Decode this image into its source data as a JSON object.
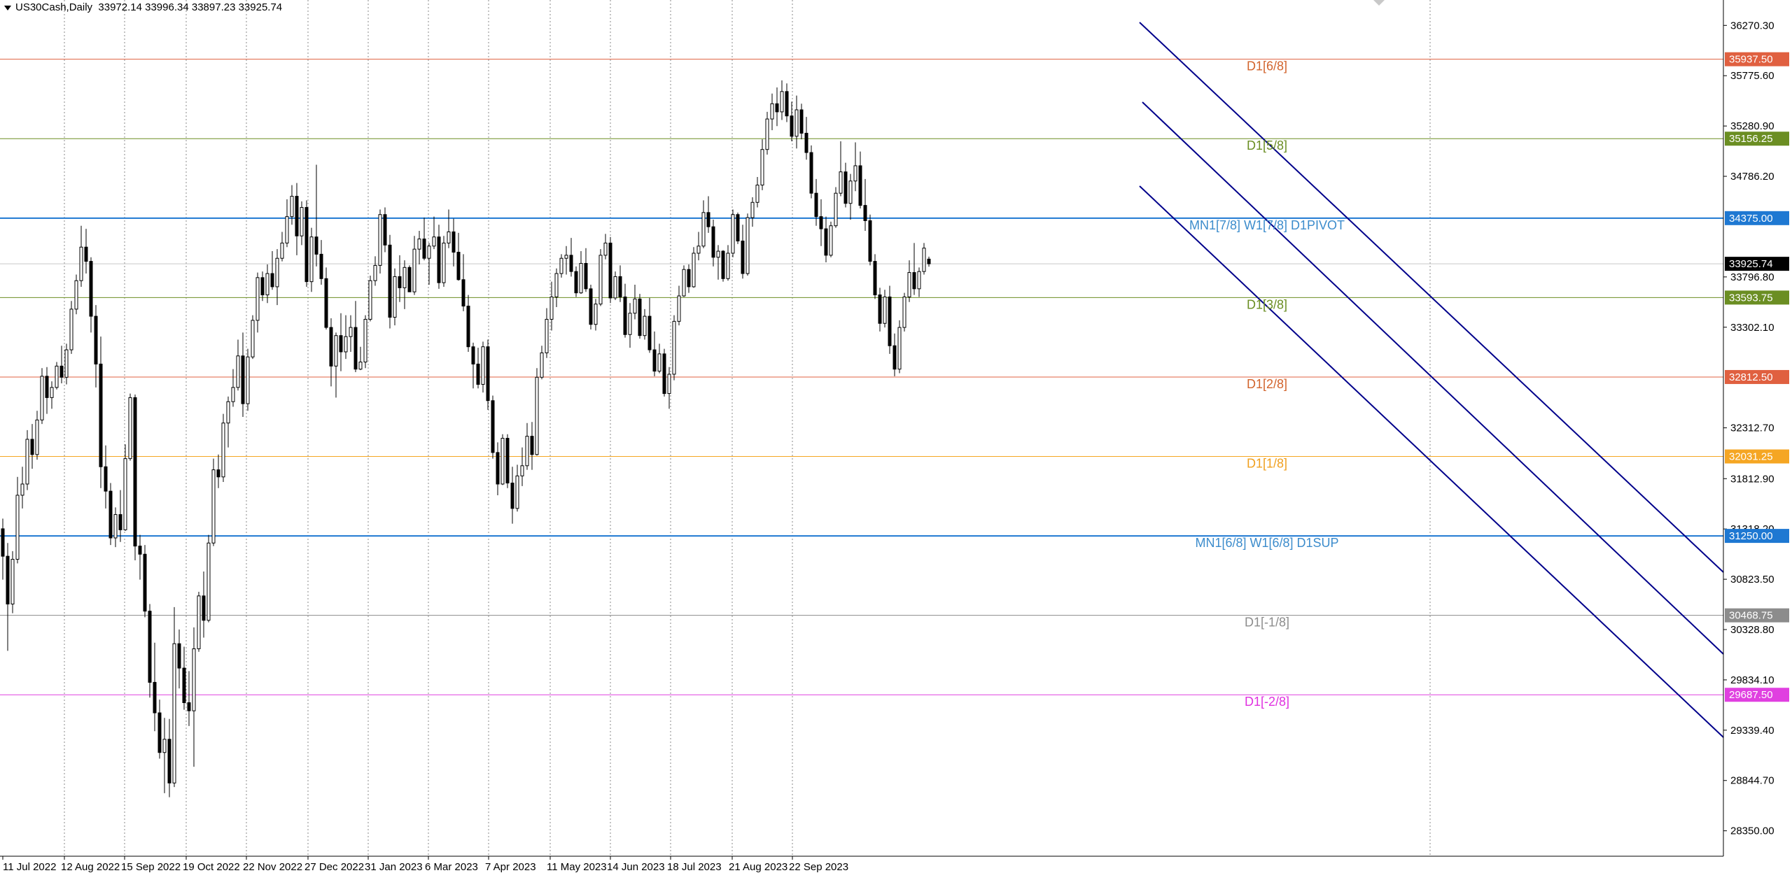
{
  "header": {
    "symbol": "US30Cash,Daily",
    "ohlc": "33972.14 33996.34 33897.23 33925.74"
  },
  "chart_data": {
    "type": "candlestick",
    "ylim": [
      28100,
      36520
    ],
    "grid": true,
    "price_ticks": [
      "36270.30",
      "35775.60",
      "35280.90",
      "34786.20",
      "33796.80",
      "33302.10",
      "32312.70",
      "31812.90",
      "31318.20",
      "30823.50",
      "30328.80",
      "29834.10",
      "29339.40",
      "28844.70",
      "28350.00"
    ],
    "date_labels": [
      "11 Jul 2022",
      "12 Aug 2022",
      "15 Sep 2022",
      "19 Oct 2022",
      "22 Nov 2022",
      "27 Dec 2022",
      "31 Jan 2023",
      "6 Mar 2023",
      "7 Apr 2023",
      "11 May 2023",
      "14 Jun 2023",
      "18 Jul 2023",
      "21 Aug 2023",
      "22 Sep 2023"
    ],
    "current_price": {
      "value": 33925.74,
      "label": "33925.74",
      "color": "#000000"
    },
    "levels": [
      {
        "name": "D1[6/8]",
        "value": 35937.5,
        "label": "35937.50",
        "color": "#e06040",
        "text_color": "#d2642d"
      },
      {
        "name": "D1[5/8]",
        "value": 35156.25,
        "label": "35156.25",
        "color": "#6b8e23",
        "text_color": "#6b8e23"
      },
      {
        "name": "MN1[7/8] W1[7/8] D1PIVOT",
        "value": 34375.0,
        "label": "34375.00",
        "color": "#1e78d2",
        "text_color": "#3c8ccc"
      },
      {
        "name": "D1[3/8]",
        "value": 33593.75,
        "label": "33593.75",
        "color": "#6b8e23",
        "text_color": "#6b8e23"
      },
      {
        "name": "D1[2/8]",
        "value": 32812.5,
        "label": "32812.50",
        "color": "#e06040",
        "text_color": "#d2642d"
      },
      {
        "name": "D1[1/8]",
        "value": 32031.25,
        "label": "32031.25",
        "color": "#f5a623",
        "text_color": "#f0a020"
      },
      {
        "name": "MN1[6/8] W1[6/8] D1SUP",
        "value": 31250.0,
        "label": "31250.00",
        "color": "#1e78d2",
        "text_color": "#3c8ccc"
      },
      {
        "name": "D1[-1/8]",
        "value": 30468.75,
        "label": "30468.75",
        "color": "#8c8c8c",
        "text_color": "#8c8c8c"
      },
      {
        "name": "D1[-2/8]",
        "value": 29687.5,
        "label": "29687.50",
        "color": "#e040e0",
        "text_color": "#e030e0"
      }
    ],
    "channel_color": "#00008b",
    "candles": [
      [
        31320,
        31420,
        30820,
        31050
      ],
      [
        31050,
        31180,
        30120,
        30580
      ],
      [
        30580,
        31100,
        30490,
        31020
      ],
      [
        31020,
        31830,
        30980,
        31650
      ],
      [
        31650,
        31930,
        31520,
        31760
      ],
      [
        31760,
        32290,
        31700,
        32200
      ],
      [
        32200,
        32350,
        31910,
        32050
      ],
      [
        32050,
        32480,
        32000,
        32390
      ],
      [
        32390,
        32900,
        32350,
        32820
      ],
      [
        32820,
        32910,
        32450,
        32610
      ],
      [
        32610,
        32770,
        32500,
        32710
      ],
      [
        32710,
        32960,
        32690,
        32920
      ],
      [
        32920,
        33120,
        32750,
        32810
      ],
      [
        32810,
        33140,
        32740,
        33080
      ],
      [
        33080,
        33560,
        33040,
        33480
      ],
      [
        33480,
        33820,
        33430,
        33760
      ],
      [
        33760,
        34300,
        33700,
        34090
      ],
      [
        34090,
        34270,
        33830,
        33950
      ],
      [
        33950,
        33990,
        33250,
        33410
      ],
      [
        33410,
        33520,
        32710,
        32940
      ],
      [
        32940,
        33210,
        31720,
        31930
      ],
      [
        31930,
        32140,
        31520,
        31690
      ],
      [
        31690,
        31770,
        31160,
        31230
      ],
      [
        31230,
        31530,
        31140,
        31460
      ],
      [
        31460,
        31700,
        31190,
        31310
      ],
      [
        31310,
        32150,
        31300,
        32010
      ],
      [
        32010,
        32650,
        31990,
        32610
      ],
      [
        32610,
        32640,
        31010,
        31150
      ],
      [
        31150,
        31260,
        30820,
        31070
      ],
      [
        31070,
        31160,
        30450,
        30510
      ],
      [
        30510,
        30580,
        29660,
        29810
      ],
      [
        29810,
        30200,
        29330,
        29510
      ],
      [
        29510,
        29640,
        29060,
        29120
      ],
      [
        29120,
        29460,
        28720,
        29250
      ],
      [
        29250,
        29450,
        28680,
        28820
      ],
      [
        28820,
        30550,
        28780,
        30190
      ],
      [
        30190,
        30330,
        29750,
        29950
      ],
      [
        29950,
        30160,
        29540,
        29610
      ],
      [
        29610,
        29920,
        29380,
        29530
      ],
      [
        29530,
        30350,
        28980,
        30140
      ],
      [
        30140,
        30700,
        30110,
        30660
      ],
      [
        30660,
        30900,
        30250,
        30420
      ],
      [
        30420,
        31260,
        30400,
        31180
      ],
      [
        31180,
        32010,
        31150,
        31900
      ],
      [
        31900,
        32050,
        31720,
        31830
      ],
      [
        31830,
        32450,
        31780,
        32360
      ],
      [
        32360,
        32620,
        32120,
        32570
      ],
      [
        32570,
        32890,
        32520,
        32710
      ],
      [
        32710,
        33180,
        32680,
        33020
      ],
      [
        33020,
        33250,
        32420,
        32550
      ],
      [
        32550,
        33090,
        32480,
        33010
      ],
      [
        33010,
        33420,
        32990,
        33370
      ],
      [
        33370,
        33840,
        33250,
        33790
      ],
      [
        33790,
        33850,
        33560,
        33620
      ],
      [
        33620,
        33920,
        33540,
        33830
      ],
      [
        33830,
        34050,
        33670,
        33700
      ],
      [
        33700,
        34070,
        33520,
        33980
      ],
      [
        33980,
        34240,
        33950,
        34130
      ],
      [
        34130,
        34560,
        34090,
        34390
      ],
      [
        34390,
        34700,
        34310,
        34590
      ],
      [
        34590,
        34720,
        34010,
        34200
      ],
      [
        34200,
        34540,
        34110,
        34480
      ],
      [
        34480,
        34550,
        33700,
        33750
      ],
      [
        33750,
        34280,
        33650,
        34190
      ],
      [
        34190,
        34900,
        33900,
        34020
      ],
      [
        34020,
        34160,
        33720,
        33780
      ],
      [
        33780,
        33890,
        33280,
        33300
      ],
      [
        33300,
        33390,
        32720,
        32920
      ],
      [
        32920,
        33250,
        32610,
        33220
      ],
      [
        33220,
        33440,
        32870,
        33060
      ],
      [
        33060,
        33420,
        32990,
        33210
      ],
      [
        33210,
        33420,
        33060,
        33300
      ],
      [
        33300,
        33560,
        32860,
        32890
      ],
      [
        32890,
        33110,
        32880,
        32960
      ],
      [
        32960,
        33420,
        32900,
        33380
      ],
      [
        33380,
        33810,
        33360,
        33760
      ],
      [
        33760,
        34000,
        33710,
        33910
      ],
      [
        33910,
        34460,
        33830,
        34410
      ],
      [
        34410,
        34480,
        34040,
        34110
      ],
      [
        34110,
        34210,
        33290,
        33400
      ],
      [
        33400,
        33880,
        33320,
        33800
      ],
      [
        33800,
        34010,
        33550,
        33690
      ],
      [
        33690,
        33960,
        33480,
        33890
      ],
      [
        33890,
        33910,
        33650,
        33650
      ],
      [
        33650,
        34200,
        33620,
        34070
      ],
      [
        34070,
        34250,
        33920,
        34170
      ],
      [
        34170,
        34380,
        33960,
        33980
      ],
      [
        33980,
        34130,
        33720,
        34100
      ],
      [
        34100,
        34390,
        34070,
        34190
      ],
      [
        34190,
        34310,
        33680,
        33740
      ],
      [
        33740,
        34200,
        33700,
        34130
      ],
      [
        34130,
        34460,
        34080,
        34240
      ],
      [
        34240,
        34370,
        33900,
        34040
      ],
      [
        34040,
        34230,
        33760,
        33770
      ],
      [
        33770,
        34020,
        33460,
        33510
      ],
      [
        33510,
        33620,
        33060,
        33110
      ],
      [
        33110,
        33150,
        32700,
        32940
      ],
      [
        32940,
        33100,
        32700,
        32740
      ],
      [
        32740,
        33160,
        32660,
        33110
      ],
      [
        33110,
        33180,
        32490,
        32580
      ],
      [
        32580,
        32630,
        32010,
        32070
      ],
      [
        32070,
        32170,
        31650,
        31760
      ],
      [
        31760,
        32250,
        31750,
        32210
      ],
      [
        32210,
        32250,
        31720,
        31770
      ],
      [
        31770,
        31930,
        31370,
        31520
      ],
      [
        31520,
        31950,
        31490,
        31840
      ],
      [
        31840,
        32120,
        31740,
        31940
      ],
      [
        31940,
        32360,
        31900,
        32230
      ],
      [
        32230,
        32370,
        31900,
        32050
      ],
      [
        32050,
        32900,
        32040,
        32810
      ],
      [
        32810,
        33120,
        32790,
        33050
      ],
      [
        33050,
        33490,
        33000,
        33380
      ],
      [
        33380,
        33750,
        33270,
        33600
      ],
      [
        33600,
        33880,
        33500,
        33830
      ],
      [
        33830,
        34020,
        33790,
        33980
      ],
      [
        33980,
        34100,
        33820,
        34010
      ],
      [
        34010,
        34180,
        33800,
        33850
      ],
      [
        33850,
        33900,
        33600,
        33640
      ],
      [
        33640,
        34050,
        33630,
        33930
      ],
      [
        33930,
        34080,
        33650,
        33680
      ],
      [
        33680,
        33720,
        33280,
        33330
      ],
      [
        33330,
        33580,
        33270,
        33530
      ],
      [
        33530,
        34070,
        33510,
        34010
      ],
      [
        34010,
        34220,
        33970,
        34130
      ],
      [
        34130,
        34190,
        33540,
        33590
      ],
      [
        33590,
        33850,
        33570,
        33800
      ],
      [
        33800,
        33910,
        33550,
        33600
      ],
      [
        33600,
        33730,
        33200,
        33230
      ],
      [
        33230,
        33540,
        33100,
        33440
      ],
      [
        33440,
        33720,
        33380,
        33580
      ],
      [
        33580,
        33630,
        33190,
        33220
      ],
      [
        33220,
        33480,
        33180,
        33410
      ],
      [
        33410,
        33590,
        33050,
        33080
      ],
      [
        33080,
        33260,
        32820,
        32870
      ],
      [
        32870,
        33140,
        32850,
        33040
      ],
      [
        33040,
        33090,
        32620,
        32650
      ],
      [
        32650,
        32910,
        32500,
        32840
      ],
      [
        32840,
        33420,
        32780,
        33360
      ],
      [
        33360,
        33710,
        33320,
        33610
      ],
      [
        33610,
        33910,
        33600,
        33870
      ],
      [
        33870,
        33920,
        33640,
        33700
      ],
      [
        33700,
        34090,
        33690,
        34030
      ],
      [
        34030,
        34240,
        33960,
        34100
      ],
      [
        34100,
        34550,
        34080,
        34430
      ],
      [
        34430,
        34590,
        34230,
        34290
      ],
      [
        34290,
        34360,
        33900,
        33990
      ],
      [
        33990,
        34110,
        33770,
        34050
      ],
      [
        34050,
        34060,
        33750,
        33780
      ],
      [
        33780,
        34110,
        33760,
        34030
      ],
      [
        34030,
        34460,
        33990,
        34410
      ],
      [
        34410,
        34430,
        34120,
        34150
      ],
      [
        34150,
        34310,
        33780,
        33830
      ],
      [
        33830,
        34420,
        33810,
        34380
      ],
      [
        34380,
        34580,
        34290,
        34530
      ],
      [
        34530,
        34780,
        34480,
        34700
      ],
      [
        34700,
        35150,
        34650,
        35050
      ],
      [
        35050,
        35420,
        35000,
        35350
      ],
      [
        35350,
        35600,
        35240,
        35500
      ],
      [
        35500,
        35660,
        35280,
        35420
      ],
      [
        35420,
        35730,
        35340,
        35620
      ],
      [
        35620,
        35700,
        35320,
        35380
      ],
      [
        35380,
        35520,
        35130,
        35180
      ],
      [
        35180,
        35580,
        35060,
        35440
      ],
      [
        35440,
        35500,
        35150,
        35210
      ],
      [
        35210,
        35370,
        34950,
        35020
      ],
      [
        35020,
        35090,
        34570,
        34620
      ],
      [
        34620,
        34760,
        34300,
        34390
      ],
      [
        34390,
        34560,
        34100,
        34270
      ],
      [
        34270,
        34390,
        33940,
        34010
      ],
      [
        34010,
        34340,
        33990,
        34300
      ],
      [
        34300,
        34680,
        34280,
        34620
      ],
      [
        34620,
        35130,
        34590,
        34830
      ],
      [
        34830,
        34920,
        34480,
        34520
      ],
      [
        34520,
        34810,
        34360,
        34740
      ],
      [
        34740,
        35120,
        34640,
        34890
      ],
      [
        34890,
        35030,
        34470,
        34500
      ],
      [
        34500,
        34760,
        34250,
        34350
      ],
      [
        34350,
        34410,
        33910,
        33950
      ],
      [
        33950,
        34020,
        33580,
        33620
      ],
      [
        33620,
        33690,
        33260,
        33340
      ],
      [
        33340,
        33670,
        33300,
        33600
      ],
      [
        33600,
        33710,
        33040,
        33120
      ],
      [
        33120,
        33240,
        32820,
        32890
      ],
      [
        32890,
        33370,
        32850,
        33300
      ],
      [
        33300,
        33640,
        33260,
        33600
      ],
      [
        33600,
        33960,
        33550,
        33840
      ],
      [
        33840,
        34130,
        33620,
        33680
      ],
      [
        33680,
        33890,
        33600,
        33850
      ],
      [
        33850,
        34130,
        33820,
        34080
      ],
      [
        33972.14,
        33996.34,
        33897.23,
        33925.74
      ]
    ]
  }
}
